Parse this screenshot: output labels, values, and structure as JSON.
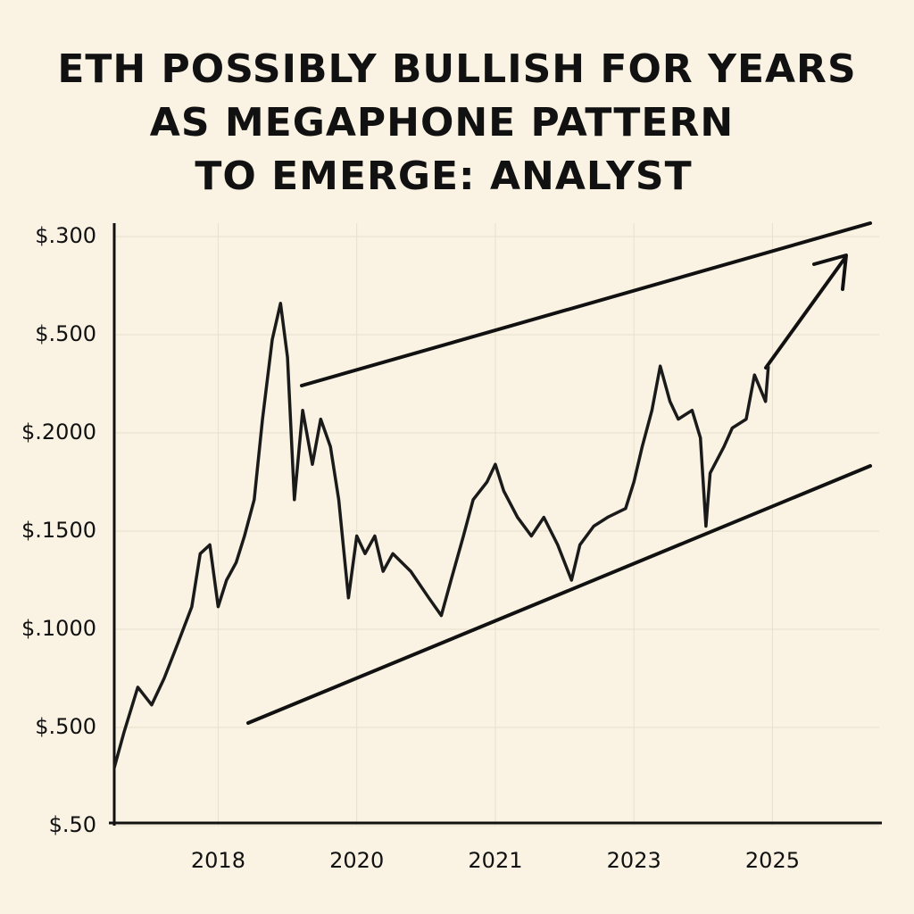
{
  "chart_data": {
    "type": "line",
    "title_lines": [
      "ETH POSSIBLY BULLISH FOR YEARS",
      "AS MEGAPHONE PATTERN",
      "TO EMERGE: ANALYST"
    ],
    "categories": [
      "2018",
      "2020",
      "2021",
      "2023",
      "2025"
    ],
    "ycategories": [
      "$.50",
      "$.500",
      "$.1000",
      "$.1500",
      "$.2000",
      "$.500",
      "$.300"
    ],
    "xlim": [
      -0.75,
      4.77
    ],
    "ylim": [
      0,
      6
    ],
    "grid": true,
    "color": "#1a1a1a",
    "x": [
      -0.75,
      -0.68,
      -0.58,
      -0.48,
      -0.39,
      -0.29,
      -0.19,
      -0.13,
      -0.06,
      0,
      0.06,
      0.13,
      0.19,
      0.26,
      0.32,
      0.39,
      0.45,
      0.5,
      0.55,
      0.61,
      0.68,
      0.74,
      0.81,
      0.87,
      0.94,
      1.0,
      1.06,
      1.13,
      1.19,
      1.26,
      1.39,
      1.52,
      1.61,
      1.68,
      1.77,
      1.84,
      1.94,
      2.0,
      2.06,
      2.16,
      2.26,
      2.35,
      2.45,
      2.55,
      2.61,
      2.71,
      2.81,
      2.94,
      3.0,
      3.06,
      3.13,
      3.19,
      3.26,
      3.32,
      3.42,
      3.48,
      3.52,
      3.55,
      3.65,
      3.71,
      3.81,
      3.87,
      3.95,
      3.97
    ],
    "values": [
      0.59,
      0.95,
      1.41,
      1.23,
      1.5,
      1.86,
      2.23,
      2.77,
      2.86,
      2.23,
      2.5,
      2.68,
      2.95,
      3.32,
      4.14,
      4.95,
      5.32,
      4.77,
      3.32,
      4.23,
      3.68,
      4.14,
      3.86,
      3.32,
      2.32,
      2.95,
      2.77,
      2.95,
      2.59,
      2.77,
      2.59,
      2.32,
      2.14,
      2.5,
      2.95,
      3.32,
      3.5,
      3.68,
      3.41,
      3.14,
      2.95,
      3.14,
      2.86,
      2.5,
      2.86,
      3.05,
      3.14,
      3.23,
      3.5,
      3.86,
      4.23,
      4.68,
      4.32,
      4.14,
      4.23,
      3.95,
      3.05,
      3.59,
      3.86,
      4.05,
      4.14,
      4.59,
      4.32,
      4.68
    ]
  }
}
